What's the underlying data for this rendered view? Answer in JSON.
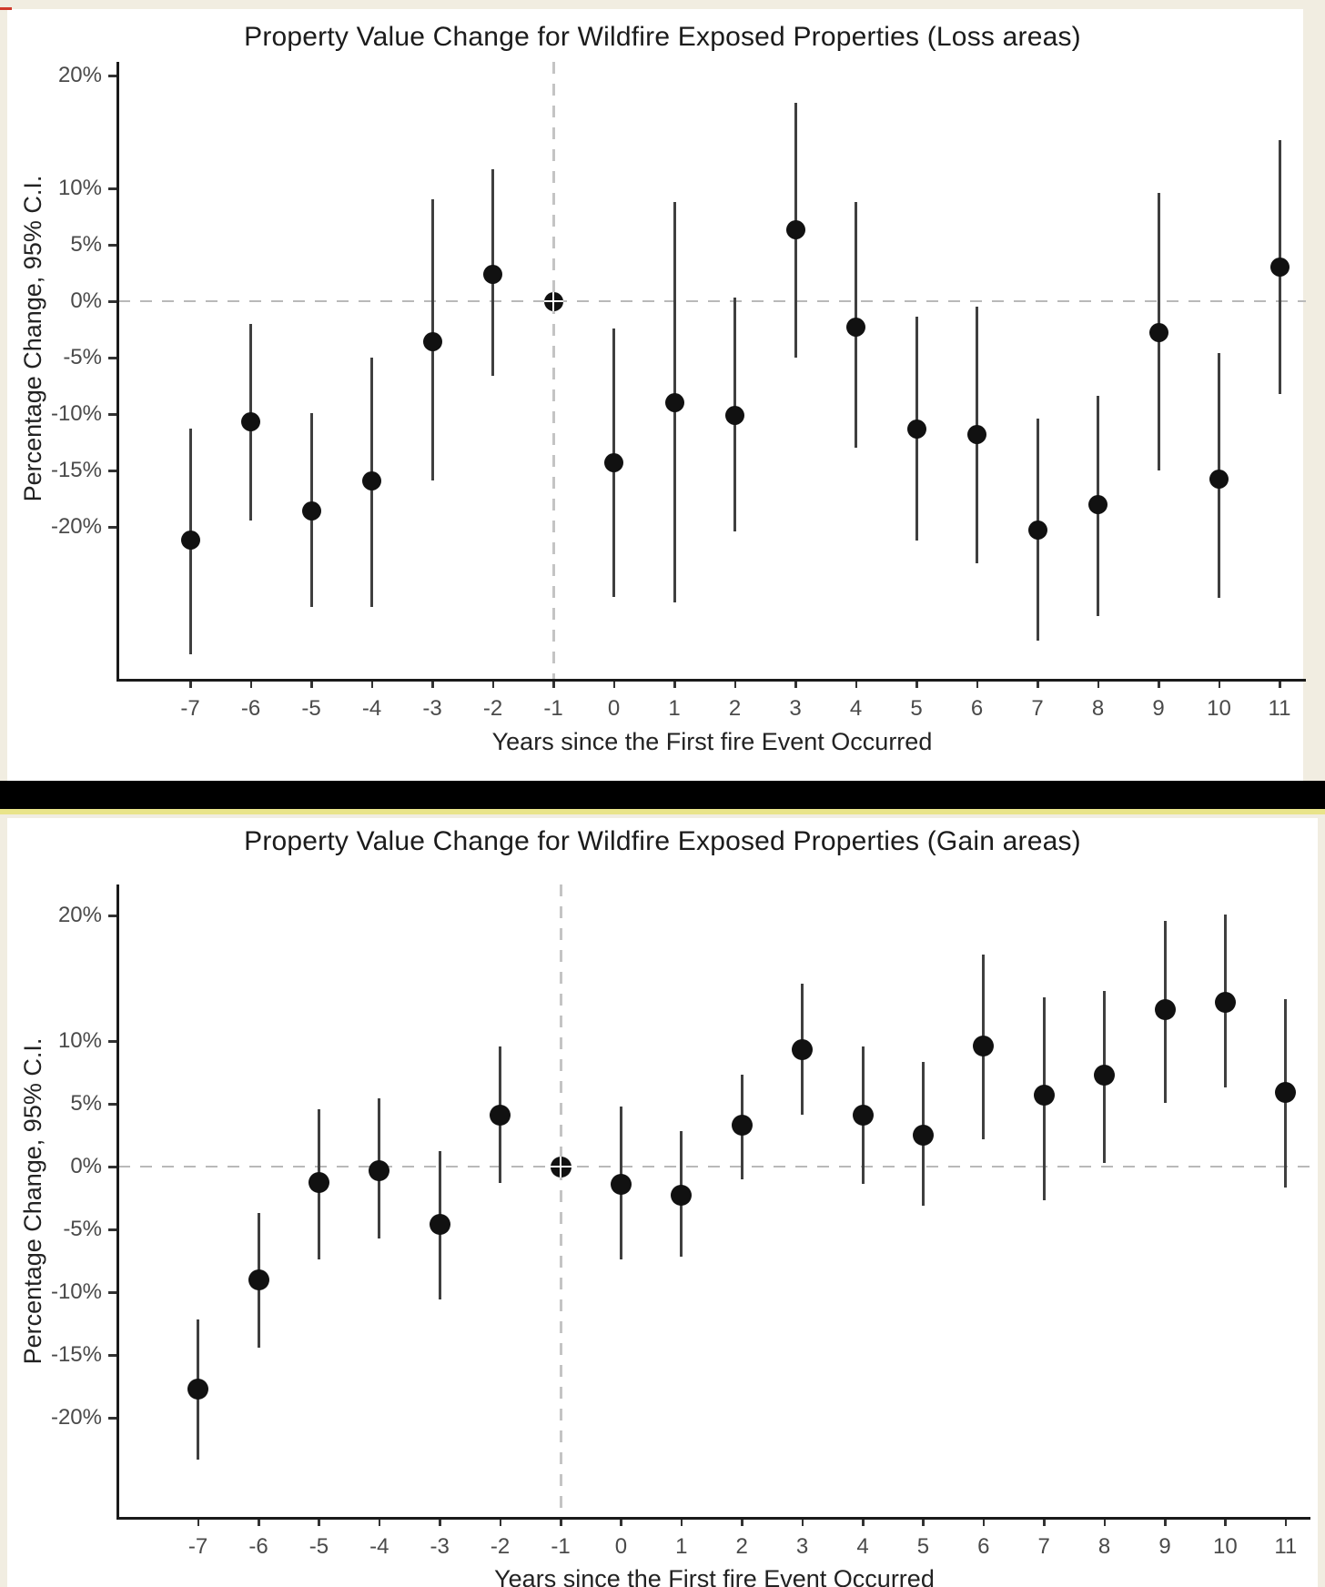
{
  "page": {
    "background_color": "#f1ede1",
    "separator_color": "#000000",
    "separator_accent_color": "#e9e48a",
    "marker_color": "#111111",
    "corner_mark_color": "#d03a2b"
  },
  "chart_data": [
    {
      "type": "scatter",
      "subtype": "point-estimates-with-95ci",
      "title": "Property Value Change for Wildfire Exposed Properties (Loss areas)",
      "xlabel": "Years since the First fire Event Occurred",
      "ylabel": "Percentage Change, 95% C.I.",
      "legend": "none",
      "grid": "off",
      "zero_reference_line": true,
      "reference_year": -1,
      "ylim": [
        -34,
        21
      ],
      "y_ticks": [
        {
          "value": 20,
          "label": "20%"
        },
        {
          "value": 10,
          "label": "10%"
        },
        {
          "value": 5,
          "label": "5%"
        },
        {
          "value": 0,
          "label": "0%"
        },
        {
          "value": -5,
          "label": "-5%"
        },
        {
          "value": -10,
          "label": "-10%"
        },
        {
          "value": -15,
          "label": "-15%"
        },
        {
          "value": -20,
          "label": "-20%"
        }
      ],
      "points": [
        {
          "year": -7,
          "estimate": -21.2,
          "ci_low": -31.3,
          "ci_high": -11.3
        },
        {
          "year": -6,
          "estimate": -10.7,
          "ci_low": -19.4,
          "ci_high": -2.0
        },
        {
          "year": -5,
          "estimate": -18.6,
          "ci_low": -27.1,
          "ci_high": -9.9
        },
        {
          "year": -4,
          "estimate": -15.9,
          "ci_low": -27.1,
          "ci_high": -5.0
        },
        {
          "year": -3,
          "estimate": -3.6,
          "ci_low": -15.9,
          "ci_high": 9.0
        },
        {
          "year": -2,
          "estimate": 2.4,
          "ci_low": -6.6,
          "ci_high": 11.7
        },
        {
          "year": -1,
          "estimate": 0,
          "ci_low": 0,
          "ci_high": 0,
          "reference": true
        },
        {
          "year": 0,
          "estimate": -14.3,
          "ci_low": -26.2,
          "ci_high": -2.4
        },
        {
          "year": 1,
          "estimate": -9.0,
          "ci_low": -26.7,
          "ci_high": 8.8
        },
        {
          "year": 2,
          "estimate": -10.1,
          "ci_low": -20.4,
          "ci_high": 0.3
        },
        {
          "year": 3,
          "estimate": 6.3,
          "ci_low": -5.0,
          "ci_high": 17.6
        },
        {
          "year": 4,
          "estimate": -2.3,
          "ci_low": -13.0,
          "ci_high": 8.8
        },
        {
          "year": 5,
          "estimate": -11.3,
          "ci_low": -21.2,
          "ci_high": -1.4
        },
        {
          "year": 6,
          "estimate": -11.8,
          "ci_low": -23.2,
          "ci_high": -0.5
        },
        {
          "year": 7,
          "estimate": -20.3,
          "ci_low": -30.1,
          "ci_high": -10.4
        },
        {
          "year": 8,
          "estimate": -18.0,
          "ci_low": -27.9,
          "ci_high": -8.4
        },
        {
          "year": 9,
          "estimate": -2.8,
          "ci_low": -15.0,
          "ci_high": 9.6
        },
        {
          "year": 10,
          "estimate": -15.8,
          "ci_low": -26.3,
          "ci_high": -4.6
        },
        {
          "year": 11,
          "estimate": 3.0,
          "ci_low": -8.2,
          "ci_high": 14.3
        }
      ]
    },
    {
      "type": "scatter",
      "subtype": "point-estimates-with-95ci",
      "title": "Property Value Change for Wildfire Exposed Properties (Gain areas)",
      "xlabel": "Years since the First fire Event Occurred",
      "ylabel": "Percentage Change, 95% C.I.",
      "legend": "none",
      "grid": "off",
      "zero_reference_line": true,
      "reference_year": -1,
      "ylim": [
        -28,
        22
      ],
      "y_ticks": [
        {
          "value": 20,
          "label": "20%"
        },
        {
          "value": 10,
          "label": "10%"
        },
        {
          "value": 5,
          "label": "5%"
        },
        {
          "value": 0,
          "label": "0%"
        },
        {
          "value": -5,
          "label": "-5%"
        },
        {
          "value": -10,
          "label": "-10%"
        },
        {
          "value": -15,
          "label": "-15%"
        },
        {
          "value": -20,
          "label": "-20%"
        }
      ],
      "points": [
        {
          "year": -7,
          "estimate": -17.7,
          "ci_low": -23.3,
          "ci_high": -12.2
        },
        {
          "year": -6,
          "estimate": -9.0,
          "ci_low": -14.4,
          "ci_high": -3.7
        },
        {
          "year": -5,
          "estimate": -1.3,
          "ci_low": -7.4,
          "ci_high": 4.6
        },
        {
          "year": -4,
          "estimate": -0.3,
          "ci_low": -5.7,
          "ci_high": 5.4
        },
        {
          "year": -3,
          "estimate": -4.6,
          "ci_low": -10.6,
          "ci_high": 1.2
        },
        {
          "year": -2,
          "estimate": 4.1,
          "ci_low": -1.3,
          "ci_high": 9.6
        },
        {
          "year": -1,
          "estimate": 0,
          "ci_low": 0,
          "ci_high": 0,
          "reference": true
        },
        {
          "year": 0,
          "estimate": -1.4,
          "ci_low": -7.4,
          "ci_high": 4.8
        },
        {
          "year": 1,
          "estimate": -2.3,
          "ci_low": -7.2,
          "ci_high": 2.8
        },
        {
          "year": 2,
          "estimate": 3.3,
          "ci_low": -1.0,
          "ci_high": 7.3
        },
        {
          "year": 3,
          "estimate": 9.3,
          "ci_low": 4.1,
          "ci_high": 14.6
        },
        {
          "year": 4,
          "estimate": 4.1,
          "ci_low": -1.4,
          "ci_high": 9.6
        },
        {
          "year": 5,
          "estimate": 2.5,
          "ci_low": -3.1,
          "ci_high": 8.3
        },
        {
          "year": 6,
          "estimate": 9.6,
          "ci_low": 2.2,
          "ci_high": 16.9
        },
        {
          "year": 7,
          "estimate": 5.7,
          "ci_low": -2.7,
          "ci_high": 13.5
        },
        {
          "year": 8,
          "estimate": 7.3,
          "ci_low": 0.3,
          "ci_high": 14.0
        },
        {
          "year": 9,
          "estimate": 12.5,
          "ci_low": 5.1,
          "ci_high": 19.6
        },
        {
          "year": 10,
          "estimate": 13.1,
          "ci_low": 6.3,
          "ci_high": 20.1
        },
        {
          "year": 11,
          "estimate": 5.9,
          "ci_low": -1.7,
          "ci_high": 13.3
        }
      ]
    }
  ]
}
